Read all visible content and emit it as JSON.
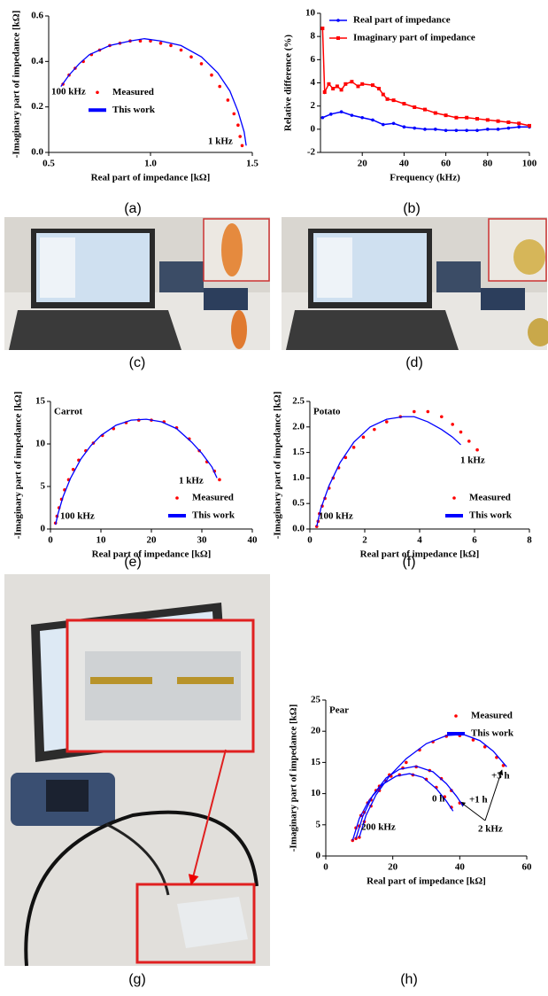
{
  "chart_data": [
    {
      "type": "scatter",
      "caption": "(a)",
      "x_label": "Real part of impedance [kΩ]",
      "y_label": "-Imaginary part of impedance [kΩ]",
      "xlim": [
        0.5,
        1.5
      ],
      "ylim": [
        0,
        0.6
      ],
      "xticks": [
        0.5,
        {
          "value": 1,
          "label": "1.0"
        },
        1.5
      ],
      "yticks": [
        {
          "value": 0,
          "label": "0.0"
        },
        0.2,
        0.4,
        0.6
      ],
      "legend": "left",
      "annotations": [
        "100 kHz",
        "1 kHz"
      ],
      "series": [
        {
          "name": "Measured",
          "mode": "markers",
          "marker": "circle",
          "color": "#ff0000",
          "x": [
            0.57,
            0.6,
            0.63,
            0.67,
            0.71,
            0.75,
            0.8,
            0.85,
            0.9,
            0.95,
            1.0,
            1.05,
            1.1,
            1.15,
            1.2,
            1.25,
            1.3,
            1.34,
            1.38,
            1.41,
            1.43,
            1.44,
            1.45
          ],
          "values": [
            0.3,
            0.34,
            0.37,
            0.4,
            0.43,
            0.45,
            0.47,
            0.48,
            0.49,
            0.49,
            0.49,
            0.48,
            0.47,
            0.45,
            0.42,
            0.39,
            0.34,
            0.29,
            0.23,
            0.17,
            0.12,
            0.07,
            0.03
          ]
        },
        {
          "name": "This work",
          "mode": "line",
          "color": "#0000ff",
          "x": [
            0.56,
            0.6,
            0.65,
            0.7,
            0.8,
            0.9,
            0.97,
            1.05,
            1.15,
            1.25,
            1.33,
            1.39,
            1.43,
            1.46,
            1.47
          ],
          "values": [
            0.29,
            0.34,
            0.39,
            0.43,
            0.47,
            0.49,
            0.5,
            0.49,
            0.47,
            0.42,
            0.35,
            0.27,
            0.18,
            0.09,
            0.03
          ]
        }
      ]
    },
    {
      "type": "line",
      "caption": "(b)",
      "x_label": "Frequency (kHz)",
      "y_label": "Relative difference (%)",
      "xlim": [
        0,
        100
      ],
      "ylim": [
        -2,
        10
      ],
      "xticks": [
        20,
        40,
        60,
        80,
        100
      ],
      "yticks": [
        -2,
        0,
        2,
        4,
        6,
        8,
        10
      ],
      "legend": "upper-left",
      "annotations": [],
      "series": [
        {
          "name": "Real part of impedance",
          "mode": "line+markers",
          "marker": "circle",
          "color": "#0000ff",
          "x": [
            1,
            5,
            10,
            15,
            20,
            25,
            30,
            35,
            40,
            45,
            50,
            55,
            60,
            65,
            70,
            75,
            80,
            85,
            90,
            95,
            100
          ],
          "values": [
            1.0,
            1.3,
            1.5,
            1.2,
            1.0,
            0.8,
            0.4,
            0.5,
            0.2,
            0.1,
            0.0,
            0.0,
            -0.1,
            -0.1,
            -0.1,
            -0.1,
            0.0,
            0.0,
            0.1,
            0.2,
            0.2
          ]
        },
        {
          "name": "Imaginary part of impedance",
          "mode": "line+markers",
          "marker": "square",
          "color": "#ff0000",
          "x": [
            1,
            2,
            4,
            6,
            8,
            10,
            12,
            15,
            18,
            20,
            25,
            28,
            30,
            32,
            35,
            40,
            45,
            50,
            55,
            60,
            65,
            70,
            75,
            80,
            85,
            90,
            95,
            100
          ],
          "values": [
            8.7,
            3.2,
            3.9,
            3.5,
            3.7,
            3.4,
            3.9,
            4.1,
            3.7,
            3.9,
            3.8,
            3.5,
            3.0,
            2.6,
            2.5,
            2.2,
            1.9,
            1.7,
            1.4,
            1.2,
            1.0,
            1.0,
            0.9,
            0.8,
            0.7,
            0.6,
            0.5,
            0.3
          ]
        }
      ]
    },
    {
      "type": "scatter",
      "caption": "(e)",
      "title": "Carrot",
      "x_label": "Real part of impedance [kΩ]",
      "y_label": "-Imaginary part of impedance [kΩ]",
      "xlim": [
        0,
        40
      ],
      "ylim": [
        0,
        15
      ],
      "xticks": [
        0,
        10,
        20,
        30,
        40
      ],
      "yticks": [
        0,
        5,
        10,
        15
      ],
      "legend": "lower-right",
      "annotations": [
        "1 kHz",
        "100 kHz"
      ],
      "series": [
        {
          "name": "Measured",
          "mode": "markers",
          "marker": "circle",
          "color": "#ff0000",
          "x": [
            1,
            1.3,
            1.7,
            2.2,
            2.8,
            3.6,
            4.5,
            5.6,
            7,
            8.5,
            10.3,
            12.5,
            15,
            17.5,
            20,
            22.5,
            25,
            27.5,
            29.5,
            31,
            32.5,
            33.5
          ],
          "values": [
            0.7,
            1.5,
            2.5,
            3.5,
            4.6,
            5.8,
            7.0,
            8.1,
            9.2,
            10.1,
            11,
            11.8,
            12.5,
            12.8,
            12.8,
            12.6,
            11.9,
            10.6,
            9.2,
            7.9,
            6.8,
            5.8
          ]
        },
        {
          "name": "This work",
          "mode": "line",
          "color": "#0000ff",
          "x": [
            1,
            1.5,
            2.5,
            4,
            6,
            8,
            10,
            13,
            16,
            19,
            22,
            25,
            28,
            30,
            32,
            33
          ],
          "values": [
            0.5,
            1.8,
            3.8,
            6,
            8.2,
            9.8,
            11,
            12.2,
            12.8,
            12.9,
            12.6,
            11.8,
            10.2,
            8.9,
            7.3,
            6.0
          ]
        }
      ]
    },
    {
      "type": "scatter",
      "caption": "(f)",
      "title": "Potato",
      "x_label": "Real part of impedance [kΩ]",
      "y_label": "-Imaginary part of impedance [kΩ]",
      "xlim": [
        0,
        8
      ],
      "ylim": [
        0,
        2.5
      ],
      "xticks": [
        0,
        2,
        4,
        6,
        8
      ],
      "yticks": [
        {
          "value": 0,
          "label": "0.0"
        },
        0.5,
        {
          "value": 1,
          "label": "1.0"
        },
        1.5,
        {
          "value": 2,
          "label": "2.0"
        },
        2.5
      ],
      "legend": "lower-right",
      "annotations": [
        "1 kHz",
        "100 kHz"
      ],
      "series": [
        {
          "name": "Measured",
          "mode": "markers",
          "marker": "circle",
          "color": "#ff0000",
          "x": [
            0.25,
            0.3,
            0.35,
            0.45,
            0.55,
            0.7,
            0.85,
            1.05,
            1.3,
            1.6,
            1.95,
            2.35,
            2.8,
            3.3,
            3.8,
            4.3,
            4.8,
            5.2,
            5.5,
            5.8,
            6.1
          ],
          "values": [
            0.05,
            0.15,
            0.3,
            0.45,
            0.6,
            0.8,
            1.0,
            1.2,
            1.4,
            1.6,
            1.8,
            1.95,
            2.1,
            2.2,
            2.3,
            2.3,
            2.2,
            2.05,
            1.9,
            1.72,
            1.55
          ]
        },
        {
          "name": "This work",
          "mode": "line",
          "color": "#0000ff",
          "x": [
            0.25,
            0.4,
            0.7,
            1.1,
            1.6,
            2.2,
            2.8,
            3.4,
            3.8,
            4.3,
            4.8,
            5.2,
            5.5
          ],
          "values": [
            0.05,
            0.4,
            0.85,
            1.3,
            1.7,
            2.0,
            2.15,
            2.2,
            2.2,
            2.1,
            1.95,
            1.8,
            1.65
          ]
        }
      ]
    },
    {
      "type": "scatter",
      "caption": "(h)",
      "title": "Pear",
      "x_label": "Real part of impedance [kΩ]",
      "y_label": "-Imaginary part of impedance [kΩ]",
      "xlim": [
        0,
        60
      ],
      "ylim": [
        0,
        25
      ],
      "xticks": [
        0,
        20,
        40,
        60
      ],
      "yticks": [
        0,
        5,
        10,
        15,
        20,
        25
      ],
      "legend": "upper-right",
      "annotations": [
        "200 kHz",
        "2 kHz",
        "0 h",
        "+1 h",
        "+3 h"
      ],
      "series": [
        {
          "name": "Measured",
          "mode": "markers",
          "marker": "circle",
          "color": "#ff0000",
          "x": [
            8,
            9,
            10.5,
            12.5,
            15,
            18,
            22,
            26,
            30,
            33,
            35.5,
            37.5
          ],
          "values": [
            2.5,
            4.5,
            6.5,
            8.5,
            10.5,
            12,
            13,
            13,
            12.3,
            11,
            9.5,
            7.8
          ]
        },
        {
          "name": "This work",
          "mode": "line",
          "color": "#0000ff",
          "x": [
            8,
            10,
            13,
            17,
            21,
            25,
            29,
            33,
            36,
            38
          ],
          "values": [
            2.5,
            6,
            9,
            11.5,
            12.8,
            13.2,
            12.6,
            10.8,
            8.8,
            7.2
          ]
        },
        {
          "mode": "markers",
          "marker": "circle",
          "color": "#ff0000",
          "x": [
            9,
            10,
            11.5,
            13.5,
            16,
            19,
            23,
            27,
            31,
            34.5,
            37.5,
            40
          ],
          "values": [
            2.8,
            4.8,
            7,
            9,
            11.2,
            13,
            14.1,
            14.3,
            13.7,
            12.4,
            10.5,
            8.5
          ]
        },
        {
          "mode": "line",
          "color": "#0000ff",
          "x": [
            9,
            11,
            14,
            18,
            22,
            27,
            32,
            36,
            39,
            41
          ],
          "values": [
            2.8,
            6.3,
            9.7,
            12.5,
            13.9,
            14.4,
            13.5,
            11.6,
            9.6,
            8
          ]
        },
        {
          "mode": "markers",
          "marker": "circle",
          "color": "#ff0000",
          "x": [
            10,
            11.5,
            13.5,
            16,
            19.5,
            24,
            28,
            32,
            36,
            40,
            44,
            47.5,
            51,
            53
          ],
          "values": [
            3,
            5.5,
            8,
            10.5,
            12.8,
            15,
            17,
            18.3,
            19.2,
            19.3,
            18.6,
            17.5,
            15.8,
            14.5
          ]
        },
        {
          "mode": "line",
          "color": "#0000ff",
          "x": [
            10,
            12,
            15,
            19,
            24,
            30,
            36,
            41,
            46,
            50,
            54
          ],
          "values": [
            3,
            6.5,
            9.8,
            12.8,
            15.6,
            18,
            19.3,
            19.5,
            18.5,
            16.8,
            14.3
          ]
        }
      ]
    }
  ],
  "photos": [
    {
      "caption": "(c)"
    },
    {
      "caption": "(d)"
    },
    {
      "caption": "(g)"
    }
  ]
}
